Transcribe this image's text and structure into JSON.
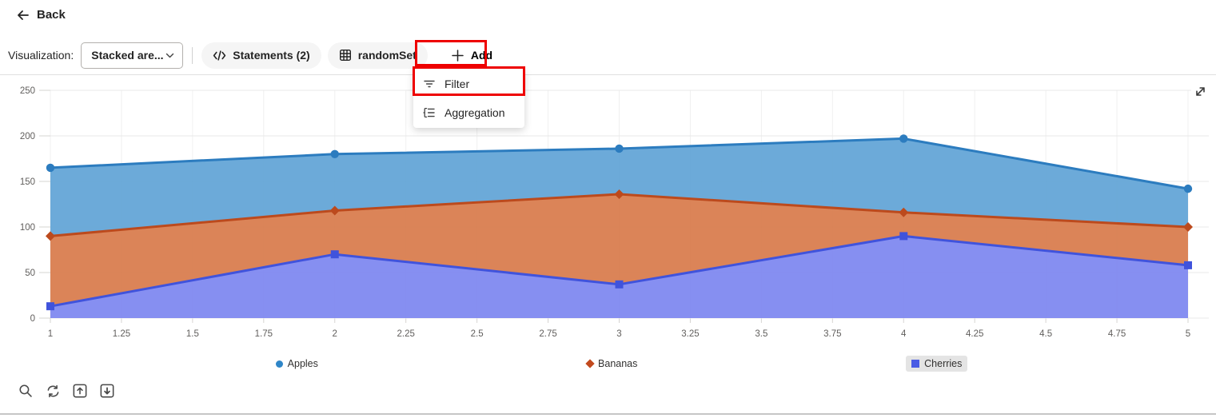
{
  "header": {
    "back_label": "Back"
  },
  "toolbar": {
    "visualization_label": "Visualization:",
    "visualization_value": "Stacked are...",
    "statements_label": "Statements (2)",
    "table_label": "randomSet",
    "add_label": "Add"
  },
  "add_menu": {
    "items": [
      {
        "label": "Filter",
        "icon": "filter-icon",
        "highlighted": true
      },
      {
        "label": "Aggregation",
        "icon": "aggregation-icon",
        "highlighted": false
      }
    ]
  },
  "annotations": {
    "highlight_color": "#ee0000"
  },
  "chart_data": {
    "type": "area",
    "stacked": true,
    "title": "",
    "xlabel": "",
    "ylabel": "",
    "x": [
      1,
      2,
      3,
      4,
      5
    ],
    "x_ticks": [
      "1",
      "1.25",
      "1.5",
      "1.75",
      "2",
      "2.25",
      "2.5",
      "2.75",
      "3",
      "3.25",
      "3.5",
      "3.75",
      "4",
      "4.25",
      "4.5",
      "4.75",
      "5"
    ],
    "y_ticks": [
      0,
      50,
      100,
      150,
      200,
      250
    ],
    "ylim": [
      0,
      250
    ],
    "grid": true,
    "legend_position": "bottom",
    "series_bottom_to_top": [
      {
        "name": "Cherries",
        "values": [
          13,
          70,
          37,
          90,
          58
        ],
        "stacked_top": [
          13,
          70,
          37,
          90,
          58
        ],
        "line_color": "#4053dc",
        "fill_color": "#7c85f0",
        "marker": "square"
      },
      {
        "name": "Bananas",
        "values": [
          77,
          48,
          99,
          26,
          42
        ],
        "stacked_top": [
          90,
          118,
          136,
          116,
          100
        ],
        "line_color": "#bc4a1d",
        "fill_color": "#d8794a",
        "marker": "diamond"
      },
      {
        "name": "Apples",
        "values": [
          75,
          62,
          50,
          81,
          42
        ],
        "stacked_top": [
          165,
          180,
          186,
          197,
          142
        ],
        "line_color": "#2c7cbf",
        "fill_color": "#60a3d6",
        "marker": "circle"
      }
    ],
    "legend": {
      "items": [
        {
          "name": "Apples",
          "marker": "circle",
          "color": "#2f86c8",
          "highlighted": false
        },
        {
          "name": "Bananas",
          "marker": "diamond",
          "color": "#c24a1e",
          "highlighted": false
        },
        {
          "name": "Cherries",
          "marker": "square",
          "color": "#4a5ce4",
          "highlighted": true
        }
      ]
    }
  },
  "chart_toolbar": {
    "icons": [
      {
        "name": "search"
      },
      {
        "name": "refresh"
      },
      {
        "name": "move-up"
      },
      {
        "name": "move-down"
      }
    ]
  }
}
